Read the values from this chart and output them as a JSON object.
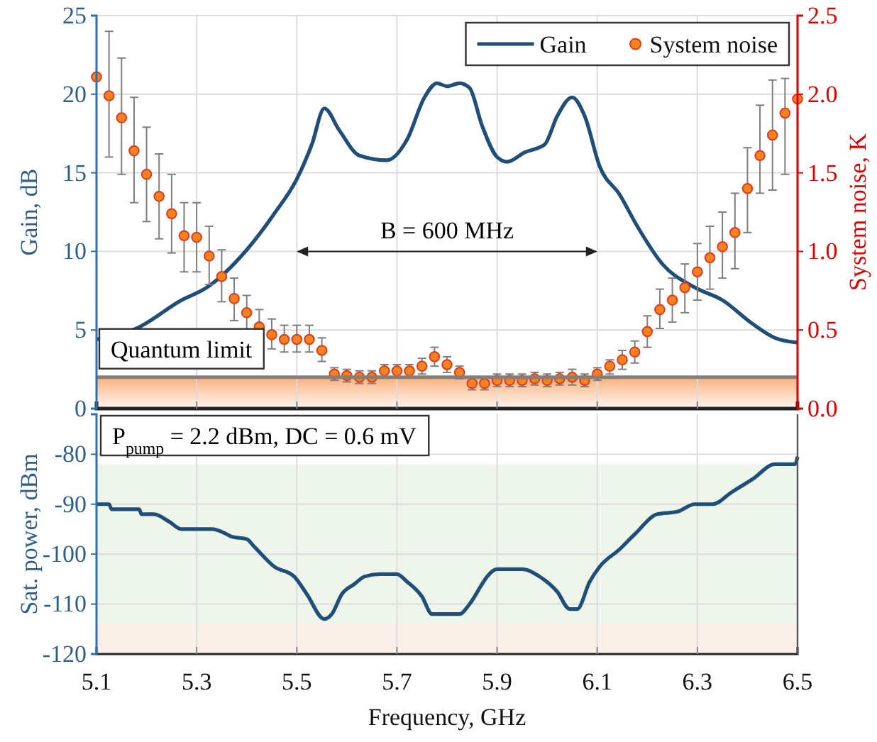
{
  "chart_data": [
    {
      "type": "line",
      "ylabel": "Gain, dB",
      "y2label": "System noise, K",
      "xlim": [
        5.1,
        6.5
      ],
      "xticks": [
        5.1,
        5.3,
        5.5,
        5.7,
        5.9,
        6.1,
        6.3,
        6.5
      ],
      "ylim": [
        0,
        25
      ],
      "yticks": [
        0,
        5,
        10,
        15,
        20,
        25
      ],
      "y2lim": [
        0,
        2.5
      ],
      "y2ticks": [
        {
          "value": 0,
          "label": "0.0"
        },
        0.5,
        {
          "value": 1,
          "label": "1.0"
        },
        1.5,
        {
          "value": 2,
          "label": "2.0"
        },
        2.5
      ],
      "tick_labels": "y",
      "grid": true,
      "legend": "top right",
      "series": [
        {
          "name": "Gain",
          "color": "#1f4e79",
          "x": [
            5.1,
            5.18,
            5.27,
            5.32,
            5.4,
            5.455,
            5.5,
            5.53,
            5.555,
            5.585,
            5.625,
            5.68,
            5.72,
            5.755,
            5.78,
            5.8,
            5.825,
            5.845,
            5.87,
            5.9,
            5.92,
            5.955,
            5.995,
            6.02,
            6.05,
            6.075,
            6.105,
            6.145,
            6.18,
            6.23,
            6.295,
            6.35,
            6.41,
            6.455,
            6.5
          ],
          "values": [
            4.4,
            5.1,
            6.9,
            7.7,
            10.1,
            12.4,
            14.6,
            16.8,
            19.1,
            17.7,
            16.1,
            15.8,
            17.1,
            19.8,
            20.7,
            20.5,
            20.7,
            20.4,
            18.0,
            16.0,
            15.7,
            16.3,
            16.8,
            18.6,
            19.8,
            18.6,
            15.4,
            13.6,
            11.6,
            9.2,
            7.7,
            6.9,
            5.4,
            4.5,
            4.2
          ]
        },
        {
          "name": "System noise",
          "type": "scatter",
          "marker": "circle",
          "axis": "y2",
          "color": "#f58220",
          "x": [
            5.1,
            5.125,
            5.15,
            5.175,
            5.2,
            5.225,
            5.25,
            5.275,
            5.3,
            5.325,
            5.35,
            5.375,
            5.4,
            5.425,
            5.45,
            5.475,
            5.5,
            5.525,
            5.55,
            5.575,
            5.6,
            5.625,
            5.65,
            5.675,
            5.7,
            5.725,
            5.75,
            5.775,
            5.8,
            5.825,
            5.85,
            5.875,
            5.9,
            5.925,
            5.95,
            5.975,
            6.0,
            6.025,
            6.05,
            6.075,
            6.1,
            6.125,
            6.15,
            6.175,
            6.2,
            6.225,
            6.25,
            6.275,
            6.3,
            6.325,
            6.35,
            6.375,
            6.4,
            6.425,
            6.45,
            6.475,
            6.5
          ],
          "values": [
            2.11,
            1.99,
            1.85,
            1.64,
            1.49,
            1.35,
            1.24,
            1.1,
            1.09,
            0.97,
            0.84,
            0.7,
            0.61,
            0.52,
            0.47,
            0.44,
            0.44,
            0.44,
            0.37,
            0.22,
            0.21,
            0.2,
            0.2,
            0.24,
            0.24,
            0.24,
            0.27,
            0.33,
            0.28,
            0.23,
            0.16,
            0.16,
            0.18,
            0.18,
            0.18,
            0.19,
            0.18,
            0.19,
            0.2,
            0.18,
            0.22,
            0.27,
            0.31,
            0.36,
            0.49,
            0.63,
            0.69,
            0.77,
            0.87,
            0.96,
            1.03,
            1.12,
            1.4,
            1.61,
            1.74,
            1.88,
            1.97
          ],
          "errors": [
            null,
            [
              1.6,
              2.4
            ],
            [
              1.49,
              2.23
            ],
            [
              1.31,
              1.98
            ],
            [
              1.19,
              1.79
            ],
            [
              1.08,
              1.62
            ],
            [
              0.99,
              1.49
            ],
            [
              0.87,
              1.31
            ],
            [
              0.87,
              1.31
            ],
            [
              0.79,
              1.16
            ],
            [
              0.68,
              1.01
            ],
            [
              0.56,
              0.83
            ],
            [
              0.5,
              0.72
            ],
            [
              0.44,
              0.63
            ],
            [
              0.38,
              0.57
            ],
            [
              0.36,
              0.53
            ],
            [
              0.36,
              0.53
            ],
            [
              0.36,
              0.53
            ],
            [
              0.3,
              0.45
            ],
            0.04,
            0.04,
            0.04,
            0.04,
            0.04,
            0.04,
            0.04,
            0.05,
            [
              0.27,
              0.39
            ],
            0.05,
            0.04,
            0.04,
            0.04,
            0.04,
            0.04,
            0.04,
            0.04,
            0.04,
            0.04,
            0.05,
            0.04,
            [
              0.18,
              0.26
            ],
            [
              0.22,
              0.31
            ],
            [
              0.25,
              0.37
            ],
            [
              0.29,
              0.43
            ],
            [
              0.39,
              0.59
            ],
            [
              0.51,
              0.76
            ],
            [
              0.55,
              0.83
            ],
            [
              0.61,
              0.92
            ],
            [
              0.69,
              1.05
            ],
            [
              0.76,
              1.16
            ],
            [
              0.83,
              1.25
            ],
            [
              0.89,
              1.37
            ],
            [
              1.12,
              1.66
            ],
            [
              1.37,
              1.93
            ],
            [
              1.39,
              2.09
            ],
            [
              1.49,
              2.1
            ],
            null
          ]
        }
      ],
      "ref_lines": [
        {
          "axis": "y2",
          "value": 0.2,
          "label": "Quantum limit",
          "color": "#808080"
        }
      ],
      "bands": [
        {
          "axis": "y2",
          "from": 0,
          "to": 0.2,
          "color": "#f7a86e"
        }
      ],
      "annotations": [
        "B = 600 MHz"
      ]
    },
    {
      "type": "line",
      "ylabel": "Sat. power, dBm",
      "xlabel": "Frequency, GHz",
      "xlim": [
        5.1,
        6.5
      ],
      "xticks": [
        5.1,
        5.3,
        5.5,
        5.7,
        5.9,
        6.1,
        6.3,
        6.5
      ],
      "ylim": [
        -120,
        -72
      ],
      "yticks": [
        -120,
        -110,
        -100,
        -90,
        -80
      ],
      "grid": true,
      "series": [
        {
          "color": "#1f4e79",
          "x": [
            5.1,
            5.125,
            5.13,
            5.185,
            5.19,
            5.215,
            5.245,
            5.27,
            5.33,
            5.36,
            5.37,
            5.4,
            5.415,
            5.455,
            5.495,
            5.52,
            5.555,
            5.57,
            5.59,
            5.615,
            5.635,
            5.665,
            5.7,
            5.72,
            5.75,
            5.77,
            5.825,
            5.845,
            5.87,
            5.88,
            5.9,
            5.95,
            5.985,
            6.02,
            6.045,
            6.06,
            6.085,
            6.105,
            6.145,
            6.175,
            6.22,
            6.26,
            6.295,
            6.33,
            6.37,
            6.41,
            6.455,
            6.495,
            6.5
          ],
          "values": [
            -90,
            -90,
            -91,
            -91,
            -92,
            -92,
            -93.5,
            -95,
            -95,
            -96,
            -96.5,
            -97,
            -98.5,
            -102.5,
            -104.5,
            -108,
            -113,
            -112,
            -108,
            -106,
            -104.5,
            -104,
            -104,
            -105.5,
            -108.5,
            -112,
            -112,
            -110,
            -106,
            -104.5,
            -103,
            -103,
            -104.5,
            -107.5,
            -111,
            -111,
            -105.5,
            -102.5,
            -99,
            -96,
            -92,
            -91.5,
            -90,
            -90,
            -87.5,
            -85,
            -82,
            -82,
            -80.5
          ]
        }
      ],
      "bands": [
        {
          "axis": "y",
          "from": -114,
          "to": -82,
          "color": "#eef5ea"
        },
        {
          "axis": "y",
          "from": -120,
          "to": -114,
          "color": "#fbefe9"
        }
      ],
      "annotations": [
        "P$_{pump}$ = 2.2 dBm, DC = 0.6 mV"
      ]
    }
  ]
}
